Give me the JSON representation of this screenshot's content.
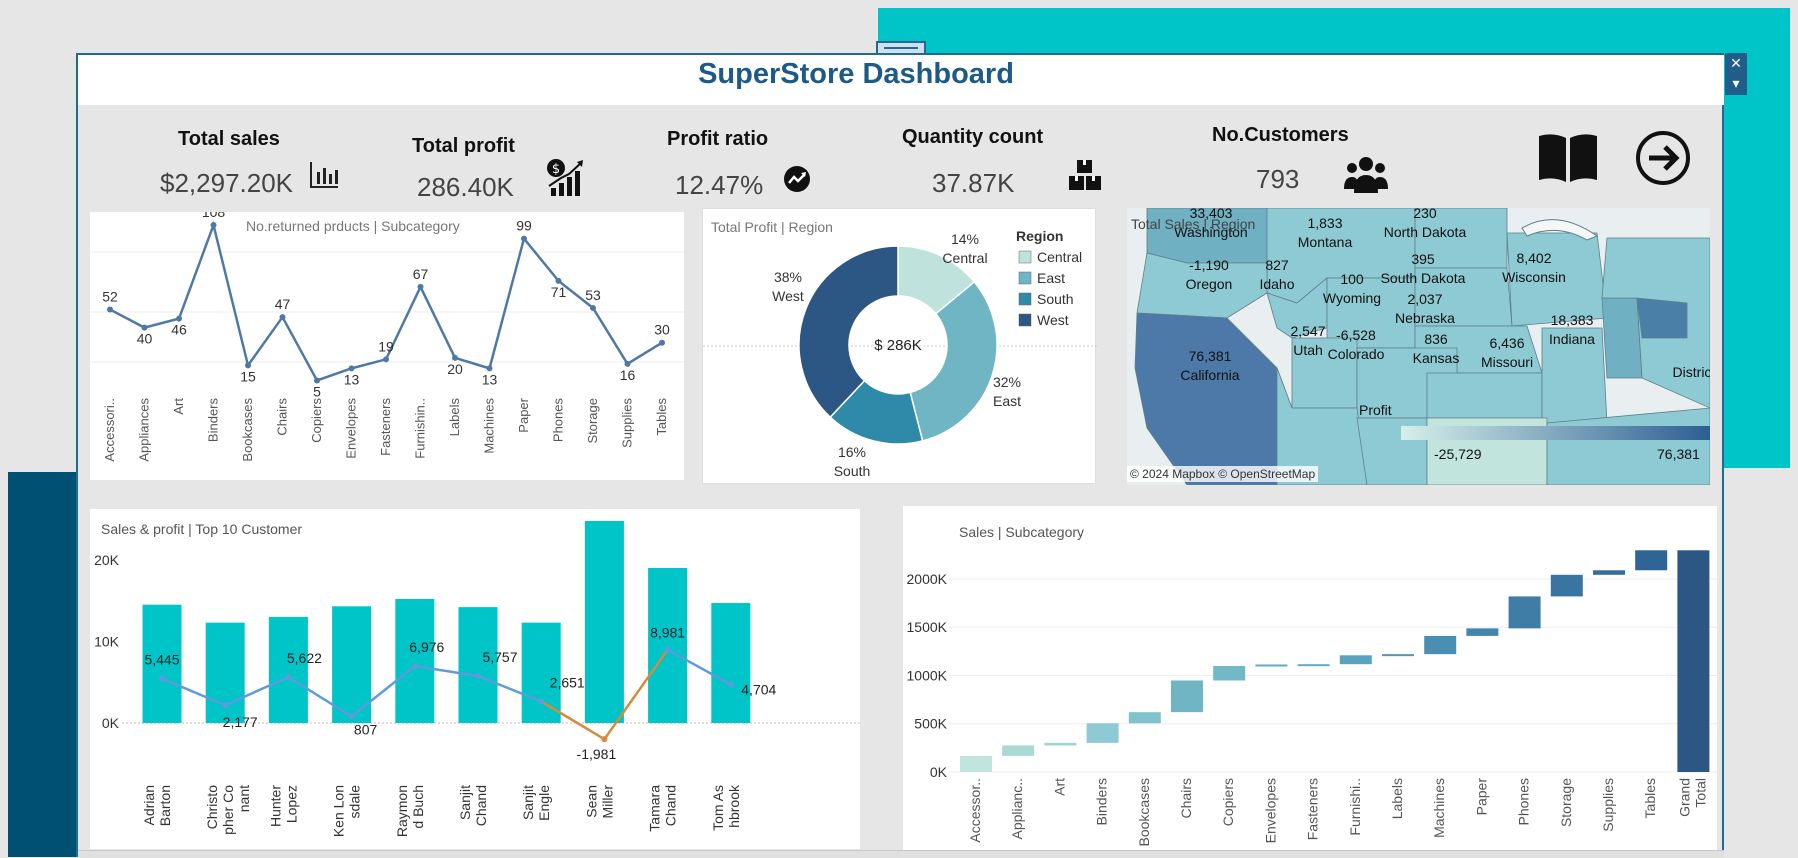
{
  "dashboard": {
    "title": "SuperStore Dashboard"
  },
  "kpis": [
    {
      "label": "Total sales",
      "value": "$2,297.20K",
      "icon": "bar-chart-icon"
    },
    {
      "label": "Total profit",
      "value": "286.40K",
      "icon": "growth-dollar-icon"
    },
    {
      "label": "Profit ratio",
      "value": "12.47%",
      "icon": "trend-up-icon"
    },
    {
      "label": "Quantity count",
      "value": "37.87K",
      "icon": "boxes-icon"
    },
    {
      "label": "No.Customers",
      "value": "793",
      "icon": "people-icon"
    }
  ],
  "nav": {
    "book_icon": "book-icon",
    "next_icon": "arrow-right-icon"
  },
  "window": {
    "close": "✕",
    "menu": "▾"
  },
  "colors": {
    "teal": "#00c5c8",
    "navy": "#005073",
    "line": "#4e79a7",
    "title": "#1d5a87"
  },
  "chart_data": [
    {
      "type": "line",
      "title": "No.returned prducts | Subcategory",
      "categories": [
        "Accessori..",
        "Appliances",
        "Art",
        "Binders",
        "Bookcases",
        "Chairs",
        "Copiers",
        "Envelopes",
        "Fasteners",
        "Furnishin..",
        "Labels",
        "Machines",
        "Paper",
        "Phones",
        "Storage",
        "Supplies",
        "Tables"
      ],
      "values": [
        52,
        40,
        46,
        108,
        15,
        47,
        5,
        13,
        19,
        67,
        20,
        13,
        99,
        71,
        53,
        16,
        30
      ],
      "ylim": [
        0,
        110
      ]
    },
    {
      "type": "pie",
      "title": "Total Profit | Region",
      "center_label": "$ 286K",
      "legend_title": "Region",
      "legend_position": "right",
      "slices": [
        {
          "name": "Central",
          "pct": "14%",
          "value": 14,
          "color": "#bfe3dc"
        },
        {
          "name": "East",
          "pct": "32%",
          "value": 32,
          "color": "#6fb5c4"
        },
        {
          "name": "South",
          "pct": "16%",
          "value": 16,
          "color": "#2f8aaa"
        },
        {
          "name": "West",
          "pct": "38%",
          "value": 38,
          "color": "#2c5784"
        }
      ]
    },
    {
      "type": "map",
      "title": "Total Sales | Region",
      "labels": [
        {
          "value": "33,403",
          "state": "Washington"
        },
        {
          "value": "1,833",
          "state": "Montana"
        },
        {
          "value": "230",
          "state": "North Dakota"
        },
        {
          "value": "-1,190",
          "state": "Oregon"
        },
        {
          "value": "827",
          "state": "Idaho"
        },
        {
          "value": "100",
          "state": "Wyoming"
        },
        {
          "value": "395",
          "state": "South Dakota"
        },
        {
          "value": "8,402",
          "state": "Wisconsin"
        },
        {
          "value": "2,037",
          "state": "Nebraska"
        },
        {
          "value": "2,547",
          "state": "Utah"
        },
        {
          "value": "-6,528",
          "state": "Colorado"
        },
        {
          "value": "836",
          "state": "Kansas"
        },
        {
          "value": "6,436",
          "state": "Missouri"
        },
        {
          "value": "18,383",
          "state": "Indiana"
        },
        {
          "value": "76,381",
          "state": "California"
        },
        {
          "value": "",
          "state": "Distric"
        }
      ],
      "legend": {
        "title": "Profit",
        "min": "-25,729",
        "max": "76,381"
      },
      "attribution": "© 2024 Mapbox © OpenStreetMap"
    },
    {
      "type": "bar",
      "title": "Sales & profit | Top 10 Customer",
      "categories": [
        "Adrian Barton",
        "Christo pher Co nant",
        "Hunter Lopez",
        "Ken Lon sdale",
        "Raymon d Buch",
        "Sanjit Chand",
        "Sanjit Engle",
        "Sean Miller",
        "Tamara Chand",
        "Tom As hbrook"
      ],
      "category_lines": [
        [
          "Adrian",
          "Barton"
        ],
        [
          "Christo",
          "pher Co",
          "nant"
        ],
        [
          "Hunter",
          "Lopez"
        ],
        [
          "Ken Lon",
          "sdale"
        ],
        [
          "Raymon",
          "d Buch"
        ],
        [
          "Sanjit",
          "Chand"
        ],
        [
          "Sanjit",
          "Engle"
        ],
        [
          "Sean",
          "Miller"
        ],
        [
          "Tamara",
          "Chand"
        ],
        [
          "Tom As",
          "hbrook"
        ]
      ],
      "series": [
        {
          "values": [
            14500,
            12300,
            13000,
            14300,
            15200,
            14200,
            12300,
            25000,
            19000,
            14700
          ]
        },
        {
          "values": [
            5445,
            2177,
            5622,
            807,
            6976,
            5757,
            2651,
            -1981,
            8981,
            4704
          ]
        }
      ],
      "profit_labels": [
        "5,445",
        "2,177",
        "5,622",
        "807",
        "6,976",
        "5,757",
        "2,651",
        "-1,981",
        "8,981",
        "4,704"
      ],
      "yticks": [
        "20K",
        "10K",
        "0K"
      ],
      "ylim": [
        -3000,
        25000
      ]
    },
    {
      "type": "bar",
      "subtype": "waterfall",
      "title": "Sales | Subcategory",
      "categories": [
        "Accessor..",
        "Applianc..",
        "Art",
        "Binders",
        "Bookcases",
        "Chairs",
        "Copiers",
        "Envelopes",
        "Fasteners",
        "Furnishi..",
        "Labels",
        "Machines",
        "Paper",
        "Phones",
        "Storage",
        "Supplies",
        "Tables",
        "Grand Total"
      ],
      "values": [
        167000,
        108000,
        27000,
        203000,
        115000,
        328000,
        150000,
        16000,
        3000,
        92000,
        12000,
        189000,
        78000,
        331000,
        224000,
        47000,
        207000,
        2297000
      ],
      "yticks": [
        "2000K",
        "1500K",
        "1000K",
        "500K",
        "0K"
      ],
      "ylim": [
        0,
        2300000
      ]
    }
  ]
}
